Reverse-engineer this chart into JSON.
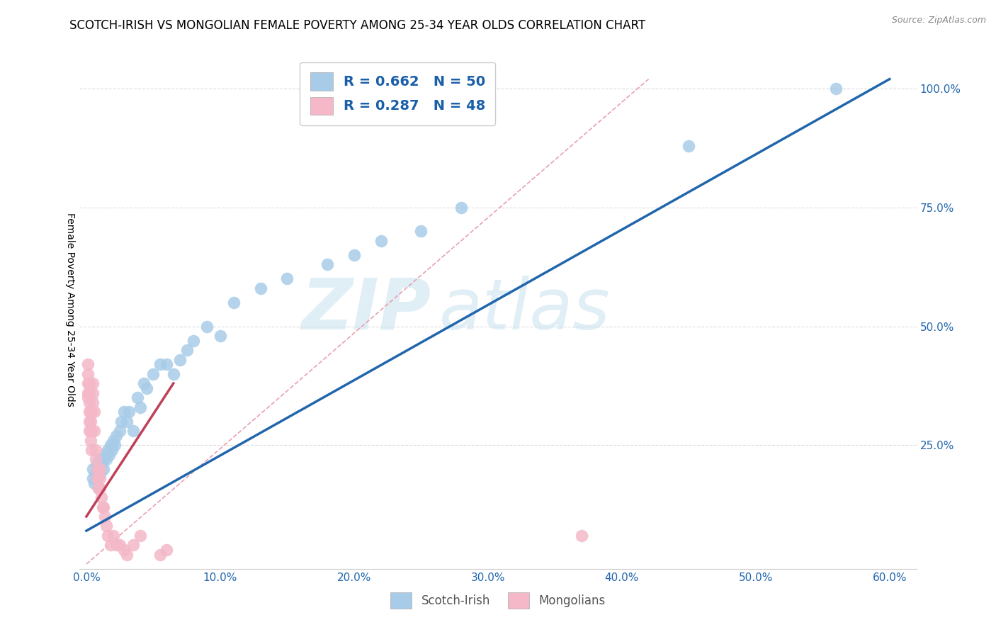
{
  "title": "SCOTCH-IRISH VS MONGOLIAN FEMALE POVERTY AMONG 25-34 YEAR OLDS CORRELATION CHART",
  "source": "Source: ZipAtlas.com",
  "xlabel_scotch": "Scotch-Irish",
  "xlabel_mongolian": "Mongolians",
  "ylabel": "Female Poverty Among 25-34 Year Olds",
  "xlim": [
    -0.005,
    0.62
  ],
  "ylim": [
    -0.01,
    1.08
  ],
  "xticks": [
    0.0,
    0.1,
    0.2,
    0.3,
    0.4,
    0.5,
    0.6
  ],
  "xtick_labels": [
    "0.0%",
    "10.0%",
    "20.0%",
    "30.0%",
    "40.0%",
    "50.0%",
    "60.0%"
  ],
  "yticks": [
    0.25,
    0.5,
    0.75,
    1.0
  ],
  "ytick_labels": [
    "25.0%",
    "50.0%",
    "75.0%",
    "100.0%"
  ],
  "scotch_irish_R": 0.662,
  "scotch_irish_N": 50,
  "mongolian_R": 0.287,
  "mongolian_N": 48,
  "scotch_color": "#a8cce8",
  "mongolian_color": "#f4b8c8",
  "scotch_line_color": "#2166ac",
  "mongolian_line_color": "#c0405a",
  "scotch_x": [
    0.005,
    0.005,
    0.006,
    0.007,
    0.008,
    0.009,
    0.01,
    0.01,
    0.01,
    0.011,
    0.012,
    0.013,
    0.014,
    0.015,
    0.016,
    0.017,
    0.018,
    0.019,
    0.02,
    0.021,
    0.022,
    0.025,
    0.026,
    0.028,
    0.03,
    0.032,
    0.035,
    0.038,
    0.04,
    0.043,
    0.045,
    0.05,
    0.055,
    0.06,
    0.065,
    0.07,
    0.075,
    0.08,
    0.09,
    0.1,
    0.11,
    0.13,
    0.15,
    0.18,
    0.2,
    0.22,
    0.25,
    0.28,
    0.45,
    0.56
  ],
  "scotch_y": [
    0.18,
    0.2,
    0.17,
    0.19,
    0.21,
    0.16,
    0.22,
    0.19,
    0.2,
    0.21,
    0.22,
    0.2,
    0.23,
    0.22,
    0.24,
    0.23,
    0.25,
    0.24,
    0.26,
    0.25,
    0.27,
    0.28,
    0.3,
    0.32,
    0.3,
    0.32,
    0.28,
    0.35,
    0.33,
    0.38,
    0.37,
    0.4,
    0.42,
    0.42,
    0.4,
    0.43,
    0.45,
    0.47,
    0.5,
    0.48,
    0.55,
    0.58,
    0.6,
    0.63,
    0.65,
    0.68,
    0.7,
    0.75,
    0.88,
    1.0
  ],
  "mongolian_x": [
    0.001,
    0.001,
    0.001,
    0.001,
    0.001,
    0.002,
    0.002,
    0.002,
    0.002,
    0.002,
    0.002,
    0.003,
    0.003,
    0.003,
    0.003,
    0.004,
    0.004,
    0.004,
    0.005,
    0.005,
    0.005,
    0.006,
    0.006,
    0.007,
    0.007,
    0.008,
    0.008,
    0.009,
    0.01,
    0.01,
    0.01,
    0.011,
    0.012,
    0.013,
    0.014,
    0.015,
    0.016,
    0.018,
    0.02,
    0.022,
    0.025,
    0.028,
    0.03,
    0.035,
    0.04,
    0.055,
    0.06,
    0.37
  ],
  "mongolian_y": [
    0.38,
    0.4,
    0.42,
    0.35,
    0.36,
    0.38,
    0.36,
    0.34,
    0.32,
    0.3,
    0.28,
    0.32,
    0.3,
    0.28,
    0.26,
    0.32,
    0.28,
    0.24,
    0.38,
    0.36,
    0.34,
    0.32,
    0.28,
    0.24,
    0.22,
    0.2,
    0.18,
    0.16,
    0.2,
    0.18,
    0.16,
    0.14,
    0.12,
    0.12,
    0.1,
    0.08,
    0.06,
    0.04,
    0.06,
    0.04,
    0.04,
    0.03,
    0.02,
    0.04,
    0.06,
    0.02,
    0.03,
    0.06
  ],
  "watermark_zip": "ZIP",
  "watermark_atlas": "atlas",
  "background_color": "#ffffff",
  "grid_color": "#dddddd",
  "title_fontsize": 12,
  "axis_label_fontsize": 10,
  "tick_fontsize": 11,
  "legend_fontsize": 13,
  "scotch_line_x0": 0.0,
  "scotch_line_x1": 0.6,
  "scotch_line_y0": 0.07,
  "scotch_line_y1": 1.02,
  "mongolian_line_x0": 0.0,
  "mongolian_line_x1": 0.065,
  "mongolian_line_y0": 0.1,
  "mongolian_line_y1": 0.38,
  "ref_line_x0": 0.0,
  "ref_line_x1": 0.42,
  "ref_line_y0": 0.0,
  "ref_line_y1": 1.02
}
